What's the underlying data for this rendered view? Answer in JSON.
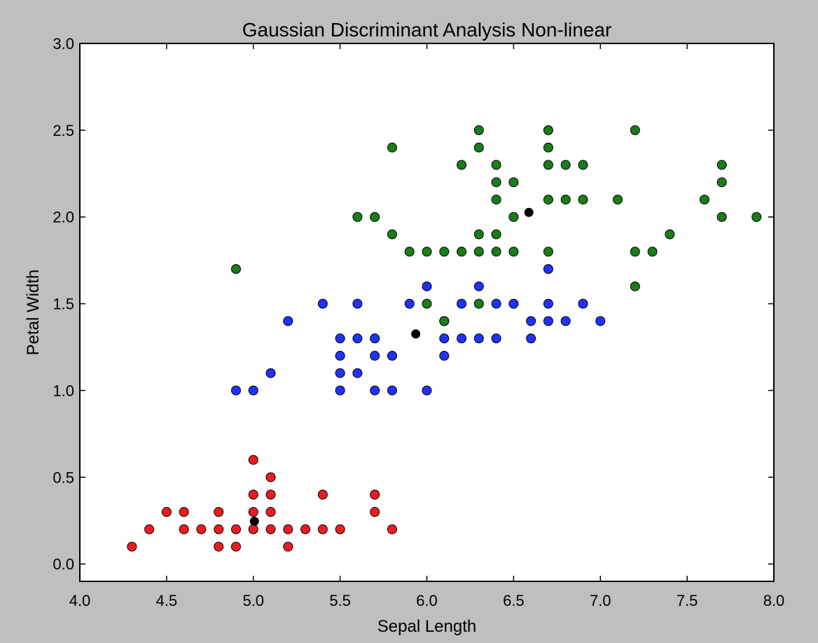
{
  "colors": {
    "background": "#bfbfbf",
    "plot_background": "#ffffff",
    "setosa": "#ee1b23",
    "versicolor": "#1f32ff",
    "virginica": "#1a7d1a",
    "centroid": "#000000",
    "marker_edge": "#000000"
  },
  "chart_data": {
    "type": "scatter",
    "title": "Gaussian Discriminant Analysis Non-linear",
    "xlabel": "Sepal Length",
    "ylabel": "Petal Width",
    "xlim": [
      4.0,
      8.0
    ],
    "ylim": [
      -0.1,
      3.0
    ],
    "xticks": [
      "4.0",
      "4.5",
      "5.0",
      "5.5",
      "6.0",
      "6.5",
      "7.0",
      "7.5",
      "8.0"
    ],
    "yticks": [
      "0.0",
      "0.5",
      "1.0",
      "1.5",
      "2.0",
      "2.5",
      "3.0"
    ],
    "grid": false,
    "legend": "none",
    "series": [
      {
        "color": "#ee1b23",
        "points": [
          [
            4.3,
            0.1
          ],
          [
            4.4,
            0.2
          ],
          [
            4.5,
            0.3
          ],
          [
            4.6,
            0.3
          ],
          [
            4.6,
            0.2
          ],
          [
            4.7,
            0.2
          ],
          [
            4.8,
            0.3
          ],
          [
            4.8,
            0.2
          ],
          [
            4.8,
            0.1
          ],
          [
            4.9,
            0.2
          ],
          [
            4.9,
            0.1
          ],
          [
            5.0,
            0.6
          ],
          [
            5.0,
            0.4
          ],
          [
            5.0,
            0.3
          ],
          [
            5.0,
            0.2
          ],
          [
            5.1,
            0.5
          ],
          [
            5.1,
            0.4
          ],
          [
            5.1,
            0.3
          ],
          [
            5.1,
            0.2
          ],
          [
            5.2,
            0.2
          ],
          [
            5.2,
            0.1
          ],
          [
            5.3,
            0.2
          ],
          [
            5.4,
            0.4
          ],
          [
            5.4,
            0.2
          ],
          [
            5.5,
            0.2
          ],
          [
            5.7,
            0.4
          ],
          [
            5.7,
            0.3
          ],
          [
            5.8,
            0.2
          ]
        ]
      },
      {
        "color": "#1f32ff",
        "points": [
          [
            4.9,
            1.0
          ],
          [
            5.0,
            1.0
          ],
          [
            5.1,
            1.1
          ],
          [
            5.2,
            1.4
          ],
          [
            5.4,
            1.5
          ],
          [
            5.5,
            1.3
          ],
          [
            5.5,
            1.2
          ],
          [
            5.5,
            1.1
          ],
          [
            5.5,
            1.0
          ],
          [
            5.6,
            1.5
          ],
          [
            5.6,
            1.3
          ],
          [
            5.6,
            1.1
          ],
          [
            5.7,
            1.3
          ],
          [
            5.7,
            1.2
          ],
          [
            5.7,
            1.0
          ],
          [
            5.8,
            1.2
          ],
          [
            5.8,
            1.0
          ],
          [
            5.9,
            1.5
          ],
          [
            6.0,
            1.6
          ],
          [
            6.0,
            1.0
          ],
          [
            6.1,
            1.3
          ],
          [
            6.1,
            1.2
          ],
          [
            6.1,
            1.4
          ],
          [
            6.2,
            1.5
          ],
          [
            6.2,
            1.3
          ],
          [
            6.3,
            1.6
          ],
          [
            6.3,
            1.3
          ],
          [
            6.4,
            1.5
          ],
          [
            6.4,
            1.3
          ],
          [
            6.5,
            1.5
          ],
          [
            6.6,
            1.4
          ],
          [
            6.6,
            1.3
          ],
          [
            6.7,
            1.7
          ],
          [
            6.7,
            1.5
          ],
          [
            6.7,
            1.4
          ],
          [
            6.8,
            1.4
          ],
          [
            6.9,
            1.5
          ],
          [
            7.0,
            1.4
          ]
        ]
      },
      {
        "color": "#1a7d1a",
        "points": [
          [
            4.9,
            1.7
          ],
          [
            5.6,
            2.0
          ],
          [
            5.7,
            2.0
          ],
          [
            5.8,
            2.4
          ],
          [
            5.8,
            1.9
          ],
          [
            5.9,
            1.8
          ],
          [
            6.0,
            1.8
          ],
          [
            6.0,
            1.5
          ],
          [
            6.1,
            1.8
          ],
          [
            6.1,
            1.4
          ],
          [
            6.2,
            2.3
          ],
          [
            6.2,
            1.8
          ],
          [
            6.3,
            2.5
          ],
          [
            6.3,
            2.4
          ],
          [
            6.3,
            1.9
          ],
          [
            6.3,
            1.8
          ],
          [
            6.3,
            1.5
          ],
          [
            6.4,
            2.3
          ],
          [
            6.4,
            2.2
          ],
          [
            6.4,
            2.1
          ],
          [
            6.4,
            1.9
          ],
          [
            6.4,
            1.8
          ],
          [
            6.5,
            2.2
          ],
          [
            6.5,
            2.0
          ],
          [
            6.5,
            1.8
          ],
          [
            6.7,
            2.5
          ],
          [
            6.7,
            2.4
          ],
          [
            6.7,
            2.3
          ],
          [
            6.7,
            2.1
          ],
          [
            6.7,
            1.8
          ],
          [
            6.8,
            2.3
          ],
          [
            6.8,
            2.1
          ],
          [
            6.9,
            2.3
          ],
          [
            6.9,
            2.1
          ],
          [
            7.1,
            2.1
          ],
          [
            7.2,
            2.5
          ],
          [
            7.2,
            1.8
          ],
          [
            7.2,
            1.6
          ],
          [
            7.3,
            1.8
          ],
          [
            7.4,
            1.9
          ],
          [
            7.6,
            2.1
          ],
          [
            7.7,
            2.3
          ],
          [
            7.7,
            2.2
          ],
          [
            7.7,
            2.0
          ],
          [
            7.9,
            2.0
          ]
        ]
      },
      {
        "color": "#000000",
        "points": [
          [
            5.006,
            0.246
          ],
          [
            5.936,
            1.326
          ],
          [
            6.588,
            2.026
          ]
        ]
      }
    ]
  }
}
